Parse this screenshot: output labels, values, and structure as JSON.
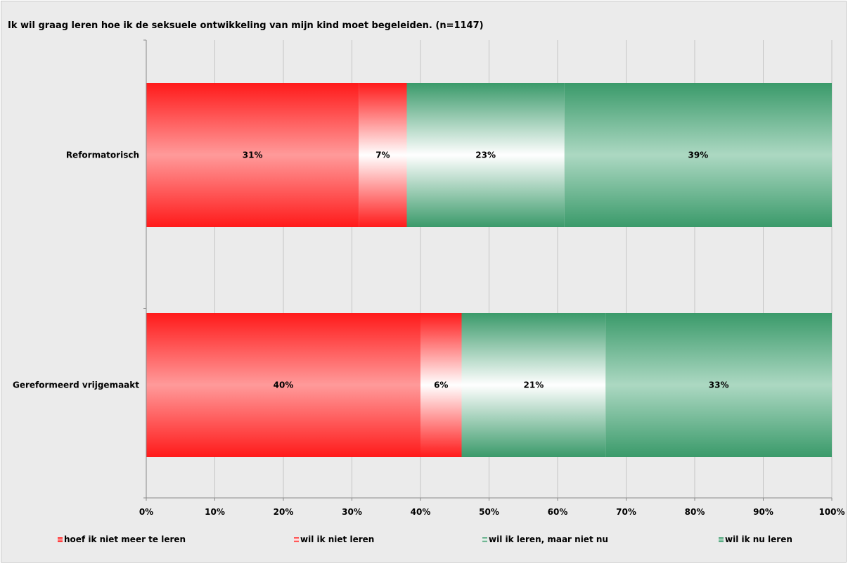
{
  "chart_data": {
    "type": "bar",
    "orientation": "horizontal",
    "stacked": "percent",
    "title": "Ik wil graag leren hoe ik de seksuele ontwikkeling van mijn kind moet begeleiden. (n=1147)",
    "categories": [
      "Reformatorisch",
      "Gereformeerd vrijgemaakt"
    ],
    "series": [
      {
        "name": "hoef ik niet meer te leren",
        "values": [
          31,
          40
        ],
        "labels": [
          "31%",
          "40%"
        ],
        "color": "#ff1a1a",
        "light": "#ff9a9a"
      },
      {
        "name": "wil ik niet leren",
        "values": [
          7,
          6
        ],
        "labels": [
          "7%",
          "6%"
        ],
        "color": "#ff1a1a",
        "light": "#ffffff"
      },
      {
        "name": "wil ik leren, maar niet nu",
        "values": [
          23,
          21
        ],
        "labels": [
          "23%",
          "21%"
        ],
        "color": "#3a9a6a",
        "light": "#ffffff"
      },
      {
        "name": "wil ik nu leren",
        "values": [
          39,
          33
        ],
        "labels": [
          "39%",
          "33%"
        ],
        "color": "#3a9a6a",
        "light": "#acd8c2"
      }
    ],
    "xaxis": {
      "range": [
        0,
        100
      ],
      "ticks": [
        0,
        10,
        20,
        30,
        40,
        50,
        60,
        70,
        80,
        90,
        100
      ],
      "tick_labels": [
        "0%",
        "10%",
        "20%",
        "30%",
        "40%",
        "50%",
        "60%",
        "70%",
        "80%",
        "90%",
        "100%"
      ]
    },
    "grid": true,
    "legend": "bottom"
  }
}
